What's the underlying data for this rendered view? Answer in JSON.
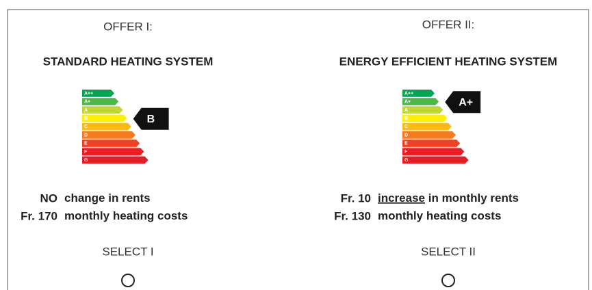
{
  "classes": [
    "A++",
    "A+",
    "A",
    "B",
    "C",
    "D",
    "E",
    "F",
    "G"
  ],
  "class_colors": [
    "#00a651",
    "#4cb848",
    "#bfd730",
    "#fff200",
    "#fdb913",
    "#f47b20",
    "#ef4123",
    "#ed1c24",
    "#e31d25"
  ],
  "offers": [
    {
      "label": "OFFER I:",
      "title": "STANDARD HEATING SYSTEM",
      "rating": "B",
      "lines": [
        {
          "lead": "NO",
          "text": "change in rents"
        },
        {
          "lead": "Fr. 170",
          "text": "monthly heating costs"
        }
      ],
      "select": "SELECT I"
    },
    {
      "label": "OFFER II:",
      "title": "ENERGY EFFICIENT HEATING SYSTEM",
      "rating": "A+",
      "lines": [
        {
          "lead": "Fr. 10",
          "underlined": "increase",
          "text": "in monthly rents"
        },
        {
          "lead": "Fr. 130",
          "text": "monthly heating costs"
        }
      ],
      "select": "SELECT II"
    }
  ]
}
